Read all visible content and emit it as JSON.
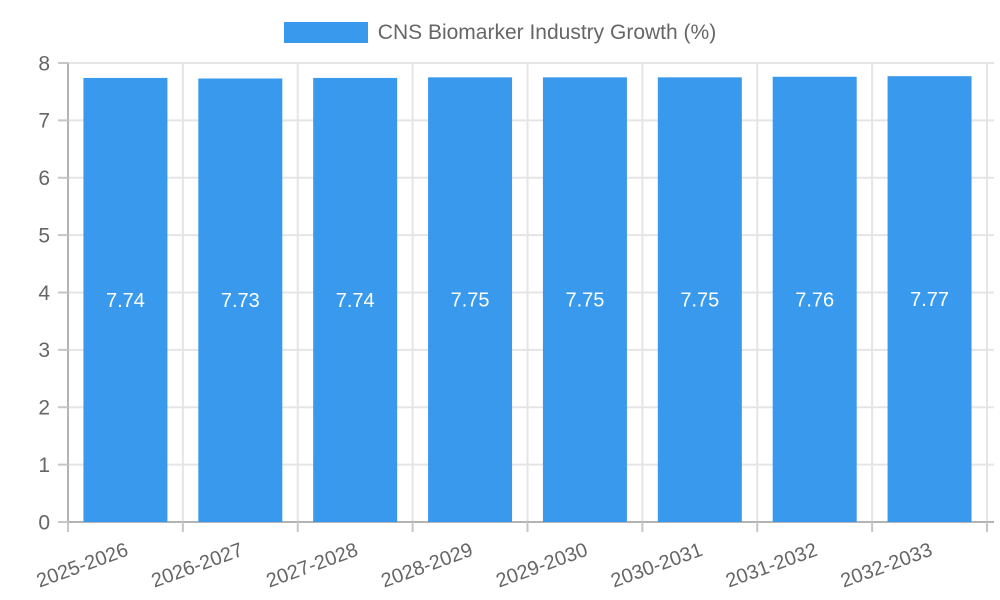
{
  "colors": {
    "bar": "#3999EC",
    "axis_text": "#666666",
    "grid_line": "#E5E5E7",
    "axis_line": "#B4B4B4",
    "tick_mark": "#C6C6C6",
    "bar_value_text": "#FFFFFF",
    "background": "#FFFFFF"
  },
  "legend": {
    "label": "CNS Biomarker Industry Growth (%)",
    "swatch_color": "#3999EC"
  },
  "chart_data": {
    "type": "bar",
    "title": "CNS Biomarker Industry Growth (%)",
    "categories": [
      "2025-2026",
      "2026-2027",
      "2027-2028",
      "2028-2029",
      "2029-2030",
      "2030-2031",
      "2031-2032",
      "2032-2033"
    ],
    "values": [
      7.74,
      7.73,
      7.74,
      7.75,
      7.75,
      7.75,
      7.76,
      7.77
    ],
    "value_labels": [
      "7.74",
      "7.73",
      "7.74",
      "7.75",
      "7.75",
      "7.75",
      "7.76",
      "7.77"
    ],
    "xlabel": "",
    "ylabel": "",
    "ylim": [
      0,
      8
    ],
    "y_ticks": [
      0,
      1,
      2,
      3,
      4,
      5,
      6,
      7,
      8
    ],
    "grid": true,
    "legend_position": "top",
    "x_tick_rotation_deg": -20
  }
}
